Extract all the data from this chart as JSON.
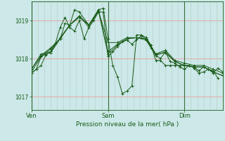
{
  "title": "",
  "xlabel": "Pression niveau de la mer( hPa )",
  "bg_color": "#cce8e8",
  "plot_bg_color": "#cce8e8",
  "line_color": "#1a5c1a",
  "grid_color_h": "#e8a0a0",
  "grid_color_v": "#b8c8c8",
  "ylim": [
    1016.65,
    1019.5
  ],
  "yticks": [
    1017,
    1018,
    1019
  ],
  "xtick_labels": [
    "Ven",
    "Sam",
    "Dim"
  ],
  "xtick_positions": [
    0,
    96,
    192
  ],
  "xmax": 240,
  "n_vgrid": 30,
  "series": [
    [
      0,
      1017.62,
      6,
      1017.72,
      12,
      1017.82,
      18,
      1018.1,
      24,
      1018.18,
      30,
      1018.4,
      36,
      1018.82,
      42,
      1019.08,
      48,
      1018.82,
      54,
      1018.72,
      60,
      1019.0,
      66,
      1018.52,
      72,
      1018.82,
      78,
      1019.0,
      84,
      1019.22,
      90,
      1019.22,
      96,
      1018.05,
      102,
      1018.18,
      108,
      1018.32,
      114,
      1018.45,
      120,
      1018.48,
      126,
      1018.38,
      132,
      1018.5,
      138,
      1018.6,
      144,
      1018.5,
      150,
      1018.28,
      156,
      1018.08,
      162,
      1018.0,
      168,
      1018.18,
      174,
      1017.92,
      180,
      1017.88,
      186,
      1017.78,
      192,
      1017.72,
      198,
      1017.82,
      204,
      1017.78,
      210,
      1017.68,
      216,
      1017.78,
      222,
      1017.72,
      228,
      1017.68,
      234,
      1017.48
    ],
    [
      0,
      1017.72,
      12,
      1018.08,
      24,
      1018.28,
      36,
      1018.52,
      48,
      1018.88,
      60,
      1019.12,
      72,
      1018.88,
      84,
      1019.28,
      96,
      1018.18,
      108,
      1018.38,
      120,
      1018.52,
      132,
      1018.55,
      144,
      1018.48,
      156,
      1018.08,
      168,
      1018.18,
      180,
      1017.92,
      192,
      1017.82,
      204,
      1017.78,
      216,
      1017.78,
      228,
      1017.65,
      240,
      1017.55
    ],
    [
      0,
      1017.62,
      6,
      1017.72,
      12,
      1018.05,
      18,
      1018.12,
      24,
      1018.15,
      36,
      1018.52,
      42,
      1018.92,
      48,
      1018.88,
      54,
      1019.28,
      60,
      1019.22,
      72,
      1018.88,
      84,
      1019.28,
      90,
      1019.32,
      96,
      1018.52,
      102,
      1017.82,
      108,
      1017.52,
      114,
      1017.08,
      120,
      1017.15,
      126,
      1017.28,
      132,
      1018.62,
      138,
      1018.62,
      144,
      1018.55,
      150,
      1018.35,
      156,
      1017.95,
      162,
      1017.95,
      168,
      1017.82,
      174,
      1017.82,
      180,
      1017.82,
      186,
      1017.82,
      192,
      1017.82,
      198,
      1017.82,
      204,
      1017.75,
      210,
      1017.62,
      216,
      1017.65,
      222,
      1017.72,
      228,
      1017.62,
      234,
      1017.75,
      240,
      1017.65
    ],
    [
      0,
      1017.72,
      12,
      1018.12,
      24,
      1018.18,
      36,
      1018.55,
      48,
      1018.88,
      60,
      1019.08,
      72,
      1018.88,
      84,
      1019.25,
      96,
      1018.42,
      108,
      1018.42,
      120,
      1018.55,
      132,
      1018.55,
      144,
      1018.52,
      156,
      1018.12,
      168,
      1018.22,
      180,
      1017.95,
      192,
      1017.88,
      204,
      1017.82,
      216,
      1017.82,
      228,
      1017.72,
      240,
      1017.62
    ],
    [
      0,
      1017.65,
      12,
      1018.05,
      24,
      1018.25,
      36,
      1018.52,
      48,
      1018.88,
      60,
      1019.12,
      72,
      1018.82,
      84,
      1019.25,
      96,
      1018.12,
      108,
      1018.35,
      120,
      1018.52,
      132,
      1018.55,
      144,
      1018.52,
      156,
      1018.12,
      168,
      1018.15,
      180,
      1017.92,
      192,
      1017.82,
      204,
      1017.78,
      216,
      1017.78,
      228,
      1017.65,
      240,
      1017.55
    ]
  ]
}
